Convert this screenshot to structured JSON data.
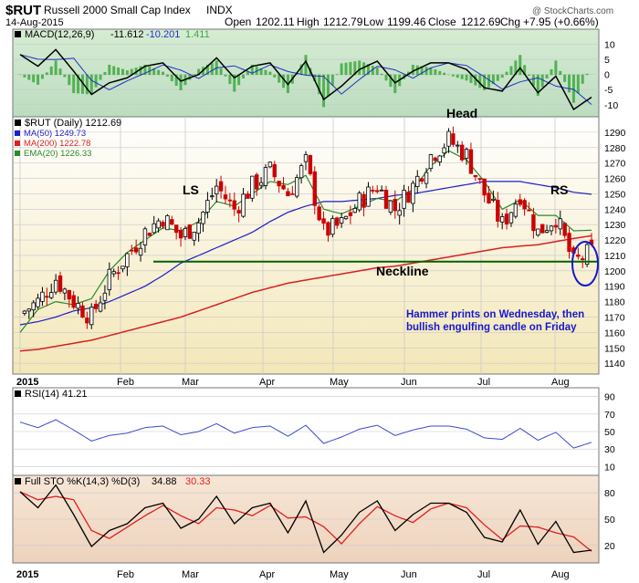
{
  "header": {
    "symbol": "$RUT",
    "name": "Russell 2000 Small Cap Index",
    "exchange": "INDX",
    "date": "14-Aug-2015",
    "open_label": "Open",
    "open": "1202.11",
    "high_label": "High",
    "high": "1212.79",
    "low_label": "Low",
    "low": "1199.46",
    "close_label": "Close",
    "close": "1212.69",
    "chg_label": "Chg",
    "chg": "+7.95 (+0.66%)",
    "watermark": "@ StockCharts.com"
  },
  "macd_panel": {
    "label_main": "MACD(12,26,9)",
    "macd": "-11.612",
    "signal": "-10.201",
    "hist": "1.411",
    "ticks": [
      10,
      5,
      0,
      -5,
      -10
    ],
    "ylim": [
      -14,
      15
    ]
  },
  "price_panel": {
    "legend": {
      "price": "$RUT (Daily) 1212.69",
      "ma50": "MA(50) 1249.73",
      "ma200": "MA(200) 1222.78",
      "ema20": "EMA(20) 1226.33"
    },
    "ticks": [
      1290,
      1280,
      1270,
      1260,
      1250,
      1240,
      1230,
      1220,
      1210,
      1200,
      1190,
      1180,
      1170,
      1160,
      1150,
      1140
    ],
    "ylim": [
      1133,
      1300
    ],
    "neckline": 1206,
    "annotations": {
      "head": "Head",
      "ls": "LS",
      "rs": "RS",
      "neckline": "Neckline",
      "note_line1": "Hammer prints on Wednesday, then",
      "note_line2": "bullish engulfing candle on Friday"
    },
    "months": [
      "2015",
      "Feb",
      "Mar",
      "Apr",
      "May",
      "Jun",
      "Jul",
      "Aug"
    ]
  },
  "rsi_panel": {
    "label": "RSI(14) 41.21",
    "ticks": [
      90,
      70,
      50,
      30,
      10
    ],
    "ylim": [
      0,
      100
    ]
  },
  "sto_panel": {
    "label_main": "Full STO %K(14,3) %D(3)",
    "k": "34.88",
    "d": "30.33",
    "ticks": [
      80,
      50,
      20
    ],
    "ylim": [
      0,
      100
    ],
    "months": [
      "2015",
      "Feb",
      "Mar",
      "Apr",
      "May",
      "Jun",
      "Jul",
      "Aug"
    ]
  },
  "colors": {
    "macd_bg": "#cfe8d0",
    "price_bg_top": "#ffffff",
    "price_bg_bottom": "#f3e7b8",
    "sto_bg": "#f3ddc8",
    "up": "#000000",
    "down": "#cc0000",
    "ma50": "#1e1ec8",
    "ma200": "#d82020",
    "ema20": "#2a8a2a",
    "neckline": "#006400",
    "rsi_line": "#3a4bd0",
    "sto_k": "#000000",
    "sto_d": "#e02020",
    "hist": "#3ea83e",
    "note": "#1818c8"
  },
  "chart_data": {
    "type": "line",
    "x": [
      "2015-01-02",
      "2015-01-09",
      "2015-01-16",
      "2015-01-23",
      "2015-01-30",
      "2015-02-06",
      "2015-02-13",
      "2015-02-20",
      "2015-02-27",
      "2015-03-06",
      "2015-03-13",
      "2015-03-20",
      "2015-03-27",
      "2015-04-02",
      "2015-04-10",
      "2015-04-17",
      "2015-04-24",
      "2015-05-01",
      "2015-05-08",
      "2015-05-15",
      "2015-05-22",
      "2015-05-29",
      "2015-06-05",
      "2015-06-12",
      "2015-06-19",
      "2015-06-26",
      "2015-07-02",
      "2015-07-10",
      "2015-07-17",
      "2015-07-24",
      "2015-07-31",
      "2015-08-07",
      "2015-08-14"
    ],
    "series": [
      {
        "name": "$RUT (Daily)",
        "values": [
          1172,
          1180,
          1195,
          1180,
          1170,
          1195,
          1210,
          1225,
          1235,
          1222,
          1232,
          1255,
          1240,
          1255,
          1265,
          1250,
          1270,
          1225,
          1230,
          1245,
          1255,
          1240,
          1255,
          1275,
          1285,
          1275,
          1250,
          1230,
          1250,
          1225,
          1235,
          1205,
          1212.69
        ]
      },
      {
        "name": "MA(50)",
        "values": [
          1165,
          1167,
          1170,
          1174,
          1176,
          1180,
          1185,
          1190,
          1197,
          1205,
          1210,
          1215,
          1220,
          1225,
          1232,
          1238,
          1242,
          1245,
          1245,
          1246,
          1247,
          1249,
          1250,
          1252,
          1254,
          1256,
          1258,
          1258,
          1258,
          1256,
          1254,
          1251,
          1249.73
        ]
      },
      {
        "name": "MA(200)",
        "values": [
          1148,
          1149,
          1151,
          1153,
          1155,
          1158,
          1161,
          1164,
          1167,
          1170,
          1174,
          1178,
          1182,
          1186,
          1189,
          1192,
          1194,
          1196,
          1198,
          1200,
          1202,
          1203,
          1205,
          1207,
          1209,
          1211,
          1213,
          1215,
          1216,
          1217,
          1219,
          1221,
          1222.78
        ]
      },
      {
        "name": "EMA(20)",
        "values": [
          1160,
          1175,
          1180,
          1178,
          1182,
          1200,
          1212,
          1220,
          1228,
          1226,
          1232,
          1245,
          1242,
          1250,
          1258,
          1256,
          1262,
          1240,
          1237,
          1242,
          1247,
          1245,
          1253,
          1268,
          1278,
          1272,
          1258,
          1240,
          1246,
          1236,
          1236,
          1226,
          1226.33
        ]
      }
    ],
    "ylim": [
      1133,
      1300
    ]
  }
}
